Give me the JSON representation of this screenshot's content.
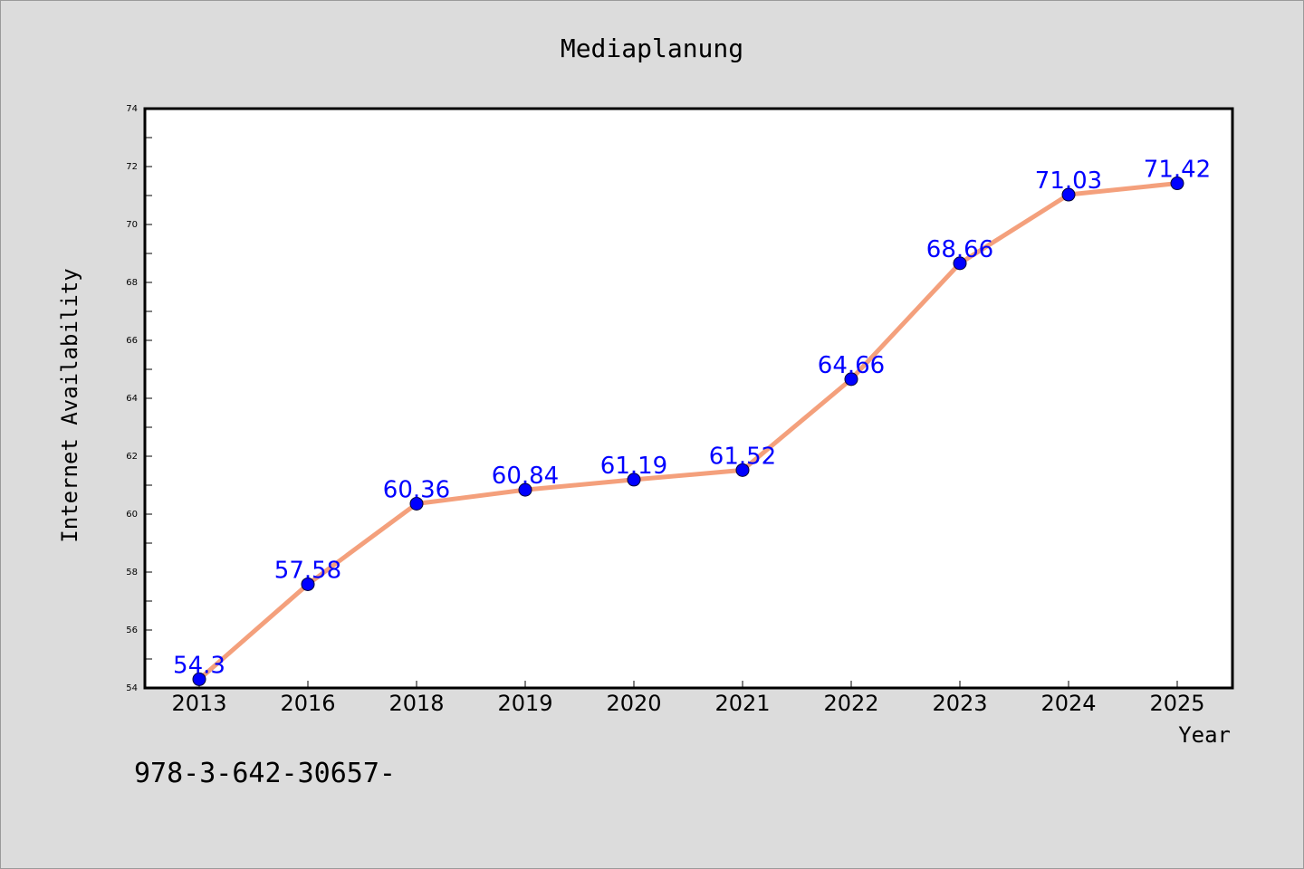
{
  "chart_data": {
    "type": "line",
    "title": "Mediaplanung",
    "xlabel": "Year",
    "ylabel": "Internet Availability",
    "categories": [
      "2013",
      "2016",
      "2018",
      "2019",
      "2020",
      "2021",
      "2022",
      "2023",
      "2024",
      "2025"
    ],
    "series": [
      {
        "values": [
          54.3,
          57.58,
          60.36,
          60.84,
          61.19,
          61.52,
          64.66,
          68.66,
          71.03,
          71.42
        ],
        "labels": [
          "54.3",
          "57.58",
          "60.36",
          "60.84",
          "61.19",
          "61.52",
          "64.66",
          "68.66",
          "71.03",
          "71.42"
        ],
        "line_color": "#f4a07c",
        "marker_color": "#0000ff"
      }
    ],
    "ylim": [
      54,
      74
    ],
    "yticks": [
      54,
      56,
      58,
      60,
      62,
      64,
      66,
      68,
      70,
      72,
      74
    ],
    "grid": false,
    "legend": "none"
  },
  "footer": {
    "text": "978-3-642-30657-"
  }
}
